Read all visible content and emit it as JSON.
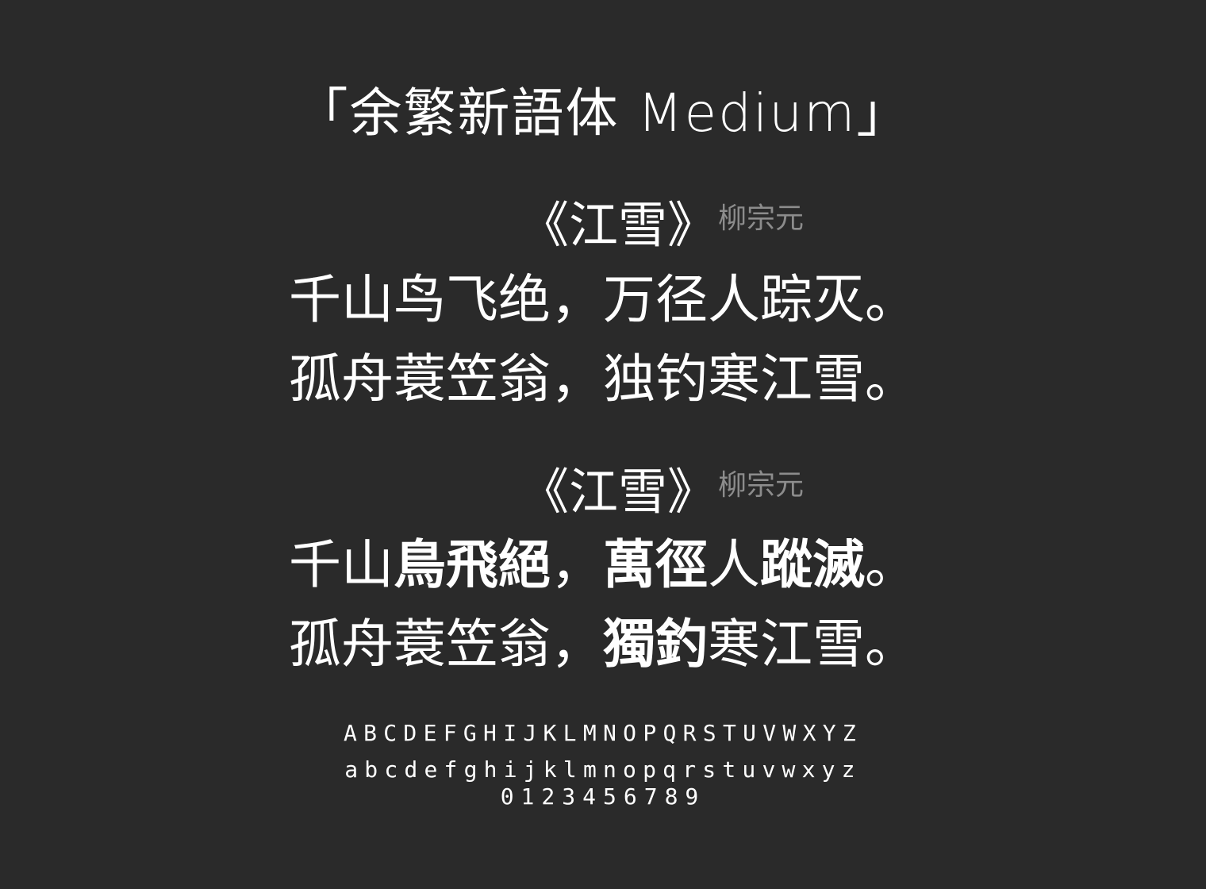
{
  "header": {
    "title": "「余繁新語体 Medium」"
  },
  "simplified": {
    "poem_title": "《江雪》",
    "author": "柳宗元",
    "line1": "千山鸟飞绝，万径人踪灭。",
    "line2": "孤舟蓑笠翁，独钓寒江雪。"
  },
  "traditional": {
    "poem_title": "《江雪》",
    "author": "柳宗元",
    "line1": {
      "a": "千山",
      "b": "鳥飛絕",
      "c": "，",
      "d": "萬徑",
      "e": "人",
      "f": "蹤滅",
      "g": "。"
    },
    "line2": {
      "a": "孤舟蓑笠翁，",
      "b": "獨釣",
      "c": "寒江雪。"
    }
  },
  "glyphs": {
    "uppercase": "ABCDEFGHIJKLMNOPQRSTUVWXYZ",
    "lowercase": "abcdefghijklmnopqrstuvwxyz",
    "digits": "0123456789"
  }
}
